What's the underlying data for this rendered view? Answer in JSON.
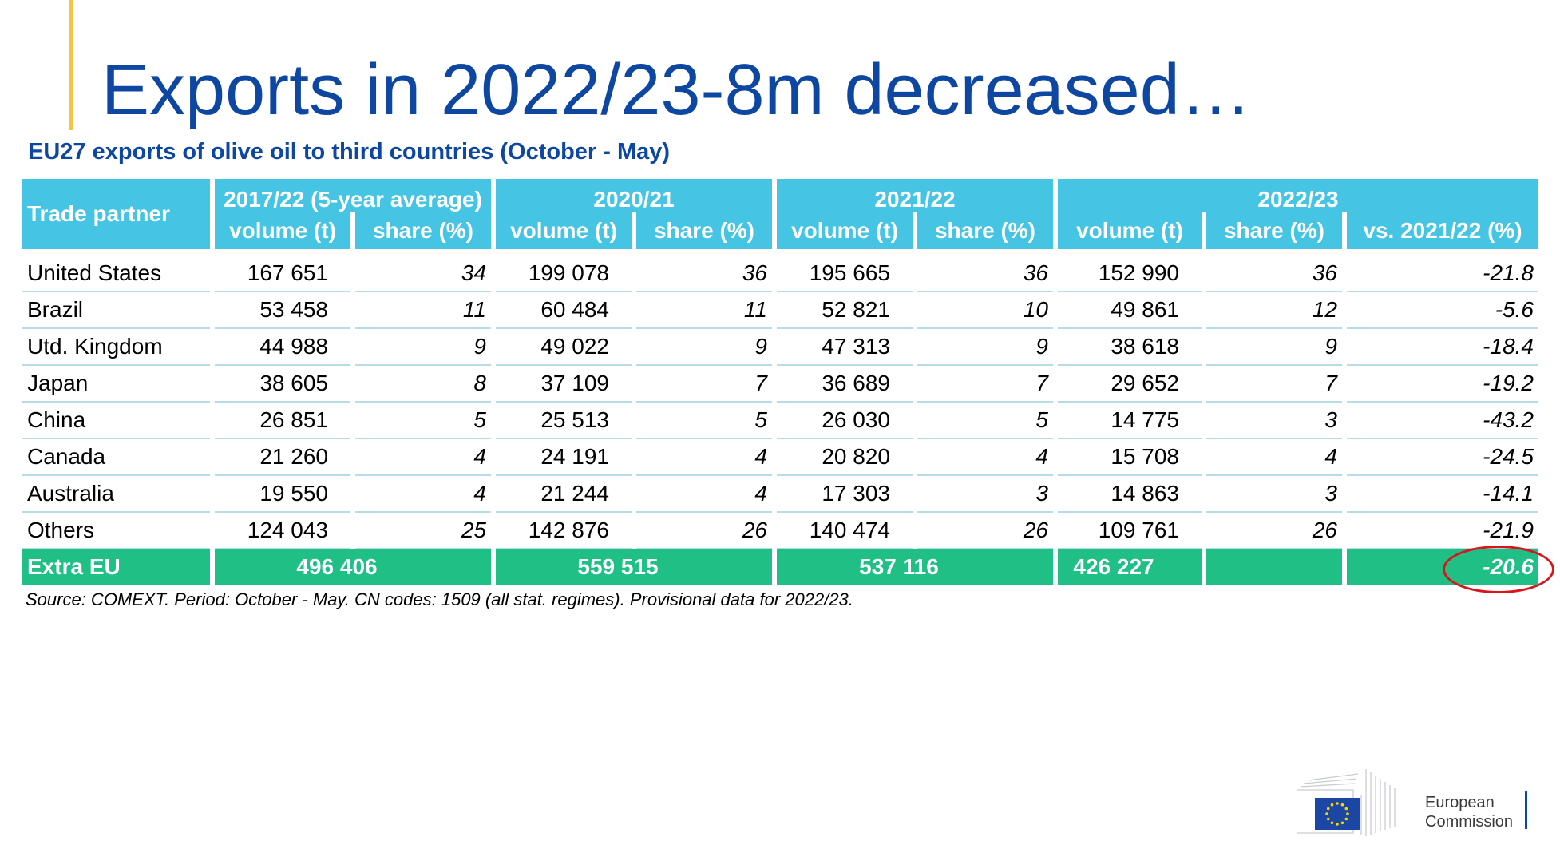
{
  "title": "Exports in 2022/23-8m decreased…",
  "subtitle": "EU27 exports of olive oil to third countries (October - May)",
  "table": {
    "partner_header": "Trade partner",
    "groups": [
      "2017/22 (5-year average)",
      "2020/21",
      "2021/22",
      "2022/23"
    ],
    "sub_volume": "volume (t)",
    "sub_share": "share (%)",
    "sub_vs": "vs. 2021/22 (%)",
    "rows": [
      {
        "partner": "United States",
        "v1": "167 651",
        "s1": "34",
        "v2": "199 078",
        "s2": "36",
        "v3": "195 665",
        "s3": "36",
        "v4": "152 990",
        "s4": "36",
        "vs": "-21.8"
      },
      {
        "partner": "Brazil",
        "v1": "53 458",
        "s1": "11",
        "v2": "60 484",
        "s2": "11",
        "v3": "52 821",
        "s3": "10",
        "v4": "49 861",
        "s4": "12",
        "vs": "-5.6"
      },
      {
        "partner": "Utd. Kingdom",
        "v1": "44 988",
        "s1": "9",
        "v2": "49 022",
        "s2": "9",
        "v3": "47 313",
        "s3": "9",
        "v4": "38 618",
        "s4": "9",
        "vs": "-18.4"
      },
      {
        "partner": "Japan",
        "v1": "38 605",
        "s1": "8",
        "v2": "37 109",
        "s2": "7",
        "v3": "36 689",
        "s3": "7",
        "v4": "29 652",
        "s4": "7",
        "vs": "-19.2"
      },
      {
        "partner": "China",
        "v1": "26 851",
        "s1": "5",
        "v2": "25 513",
        "s2": "5",
        "v3": "26 030",
        "s3": "5",
        "v4": "14 775",
        "s4": "3",
        "vs": "-43.2"
      },
      {
        "partner": "Canada",
        "v1": "21 260",
        "s1": "4",
        "v2": "24 191",
        "s2": "4",
        "v3": "20 820",
        "s3": "4",
        "v4": "15 708",
        "s4": "4",
        "vs": "-24.5"
      },
      {
        "partner": "Australia",
        "v1": "19 550",
        "s1": "4",
        "v2": "21 244",
        "s2": "4",
        "v3": "17 303",
        "s3": "3",
        "v4": "14 863",
        "s4": "3",
        "vs": "-14.1"
      },
      {
        "partner": "Others",
        "v1": "124 043",
        "s1": "25",
        "v2": "142 876",
        "s2": "26",
        "v3": "140 474",
        "s3": "26",
        "v4": "109 761",
        "s4": "26",
        "vs": "-21.9"
      }
    ],
    "total": {
      "partner": "Extra EU",
      "v1": "496 406",
      "v2": "559 515",
      "v3": "537 116",
      "v4": "426 227",
      "vs": "-20.6"
    }
  },
  "source": "Source: COMEXT. Period: October - May. CN codes: 1509 (all stat. regimes). Provisional data for 2022/23.",
  "logo": {
    "line1": "European",
    "line2": "Commission"
  },
  "colors": {
    "title": "#0e47a1",
    "header": "#45c5e3",
    "total": "#1fbf86",
    "accent": "#f6c342",
    "highlight": "#d9141c"
  }
}
